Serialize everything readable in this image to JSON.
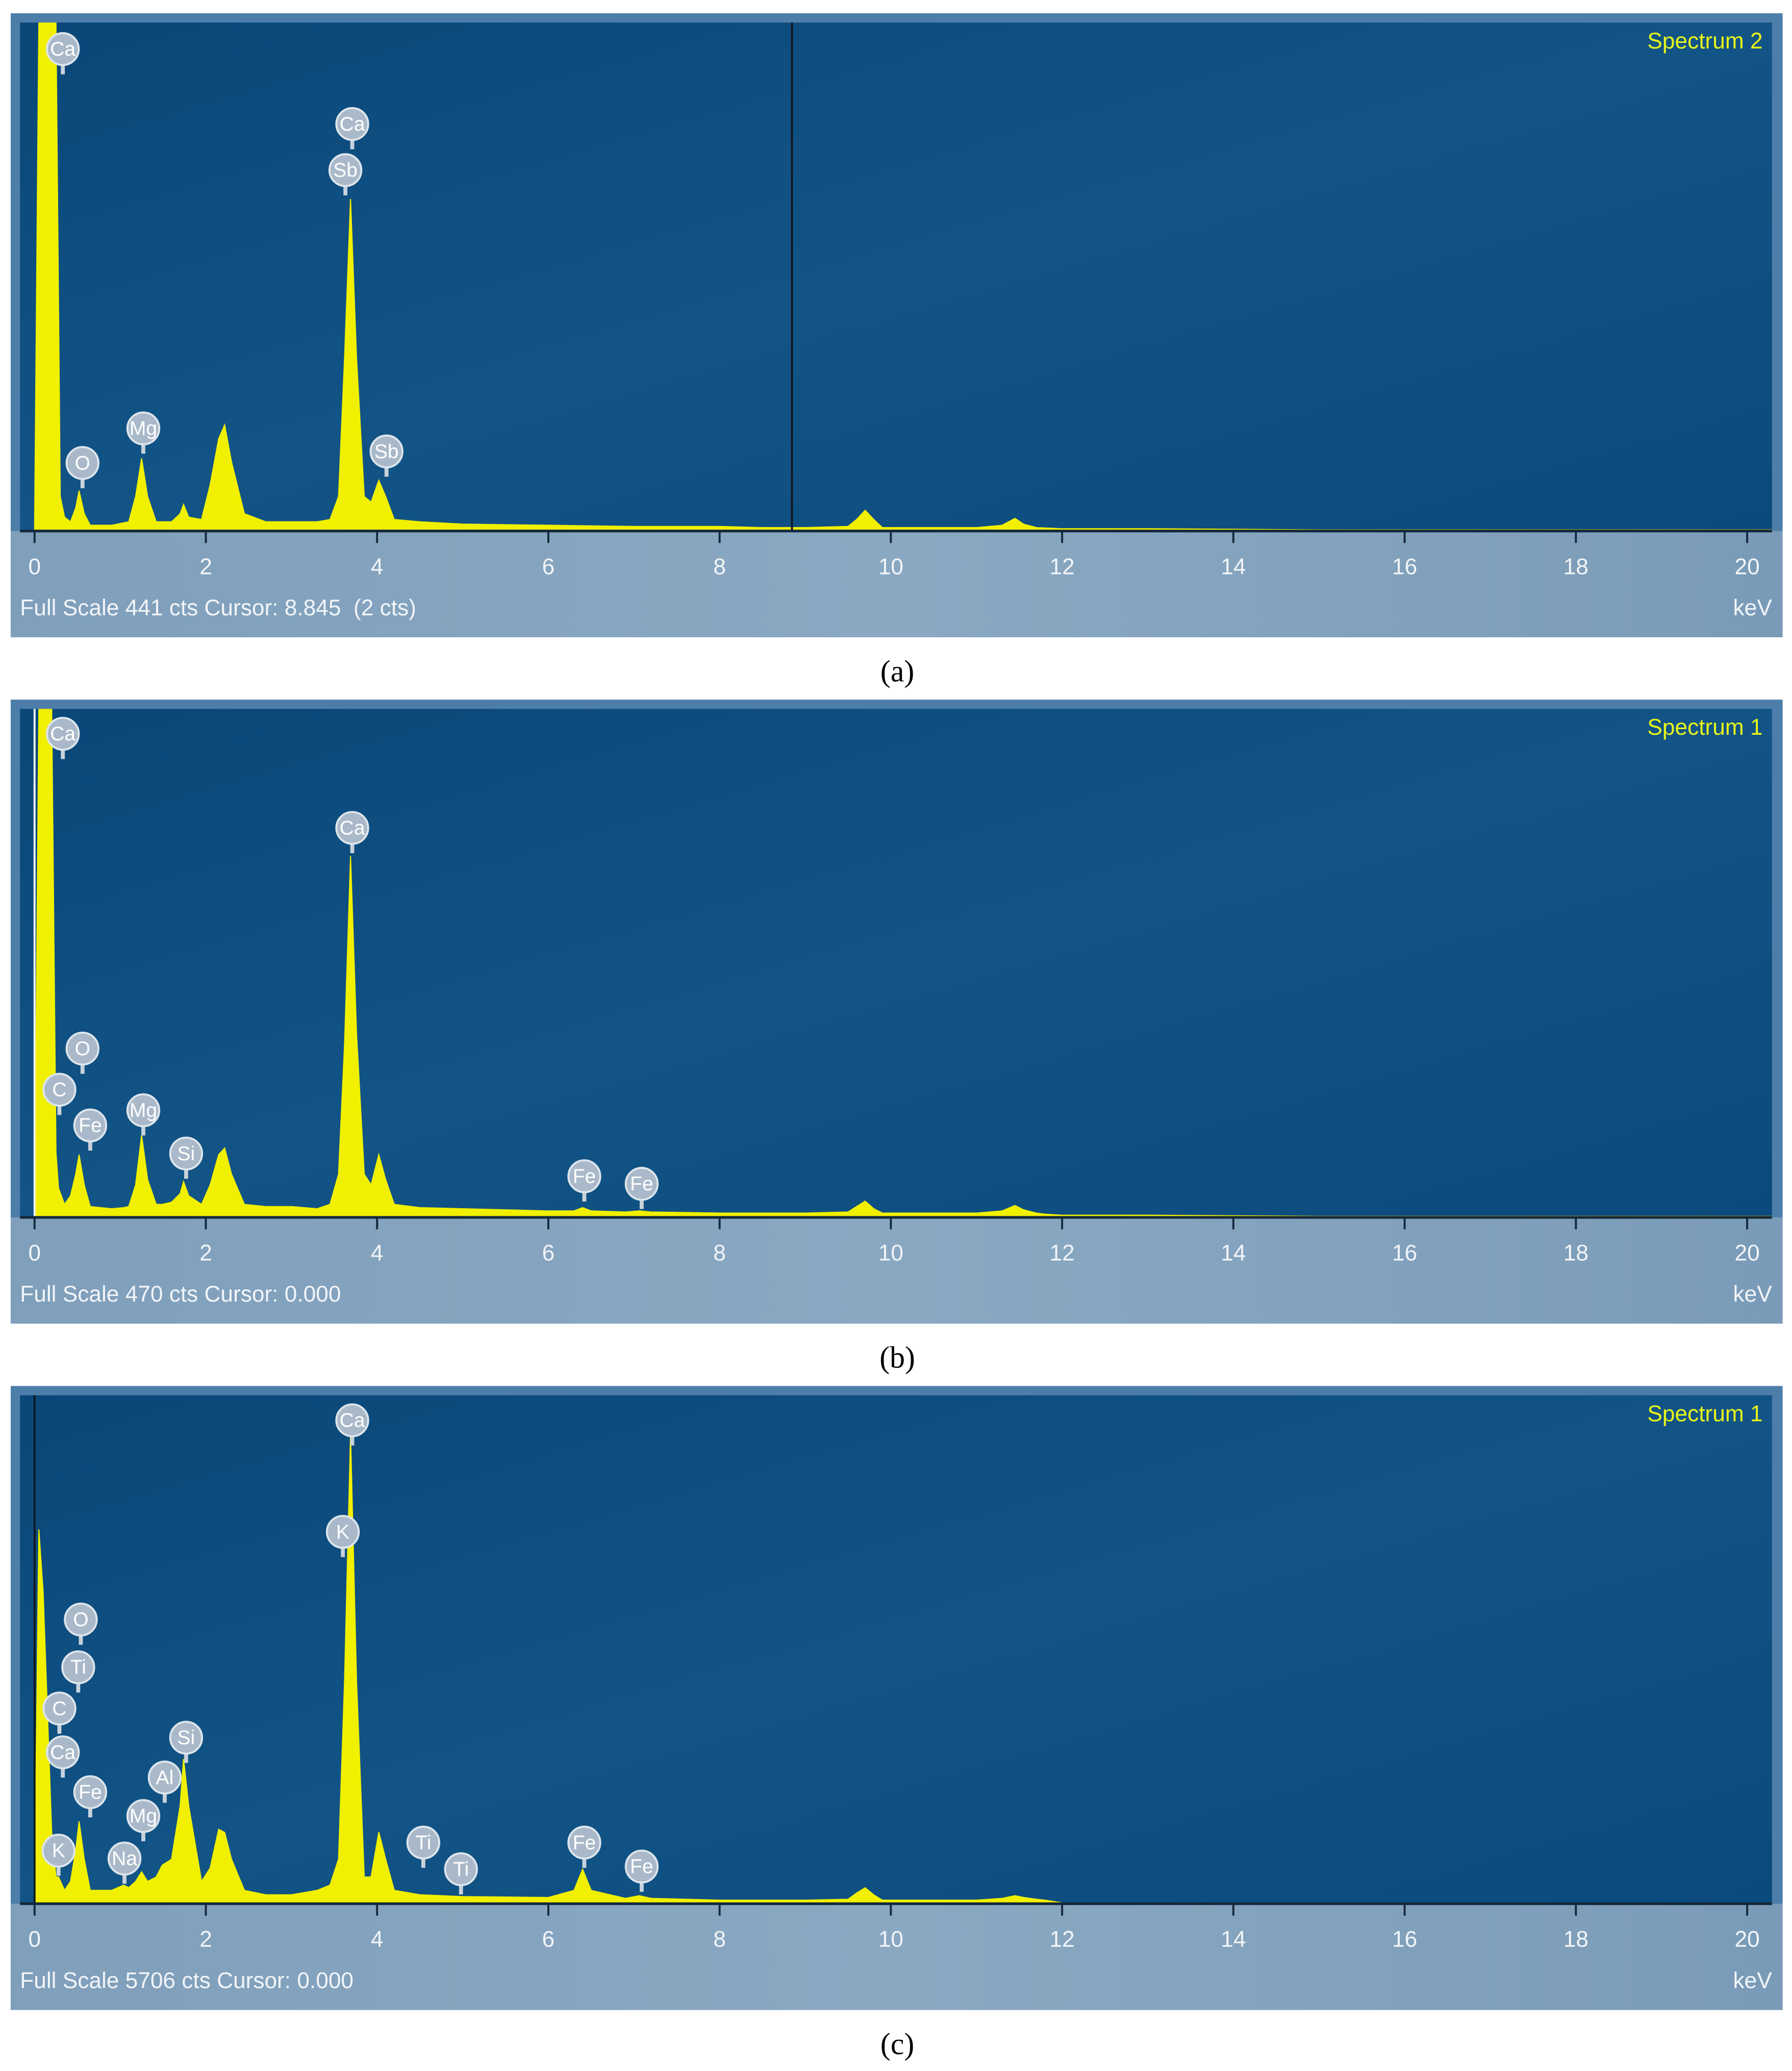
{
  "chart_data": [
    {
      "type": "area",
      "title": "Spectrum 2",
      "footer": "Full Scale 441 cts Cursor: 8.845  (2 cts)",
      "x_label": "keV",
      "caption": "(a)",
      "color": "#f0f000",
      "xlim": [
        -0.17,
        20.29
      ],
      "ylim": [
        0,
        441
      ],
      "xticks": [
        0,
        2,
        4,
        6,
        8,
        10,
        12,
        14,
        16,
        18,
        20
      ],
      "cursor": 8.845,
      "cursor_color": "#101820",
      "x": [
        -0.17,
        0,
        0.05,
        0.1,
        0.2,
        0.25,
        0.3,
        0.35,
        0.42,
        0.48,
        0.52,
        0.58,
        0.65,
        0.9,
        1.1,
        1.18,
        1.25,
        1.32,
        1.42,
        1.6,
        1.7,
        1.74,
        1.8,
        1.95,
        2.05,
        2.15,
        2.22,
        2.3,
        2.45,
        2.7,
        3.0,
        3.3,
        3.45,
        3.55,
        3.62,
        3.69,
        3.76,
        3.85,
        3.93,
        4.02,
        4.1,
        4.2,
        4.5,
        5,
        6,
        7,
        8,
        8.5,
        9,
        9.5,
        9.6,
        9.7,
        9.8,
        9.9,
        10.2,
        11,
        11.3,
        11.45,
        11.55,
        11.7,
        12,
        13,
        15,
        17,
        19,
        20.29
      ],
      "values": [
        0,
        0,
        441,
        441,
        441,
        441,
        30,
        12,
        8,
        20,
        35,
        15,
        5,
        5,
        8,
        30,
        63,
        30,
        8,
        8,
        15,
        23,
        12,
        10,
        40,
        80,
        92,
        60,
        15,
        8,
        8,
        8,
        10,
        30,
        150,
        288,
        150,
        30,
        25,
        44,
        30,
        10,
        8,
        6,
        5,
        4,
        4,
        3,
        3,
        4,
        10,
        18,
        10,
        3,
        3,
        3,
        5,
        11,
        6,
        3,
        2,
        2,
        1,
        1,
        1,
        1
      ],
      "annotations": [
        {
          "text": "Ca",
          "x": 0.33,
          "y": 418
        },
        {
          "text": "Ca",
          "x": 3.71,
          "y": 353
        },
        {
          "text": "Sb",
          "x": 3.63,
          "y": 313
        },
        {
          "text": "O",
          "x": 0.56,
          "y": 59
        },
        {
          "text": "Mg",
          "x": 1.27,
          "y": 89
        },
        {
          "text": "Sb",
          "x": 4.11,
          "y": 69
        }
      ]
    },
    {
      "type": "area",
      "title": "Spectrum 1",
      "footer": "Full Scale 470 cts Cursor: 0.000",
      "x_label": "keV",
      "caption": "(b)",
      "color": "#f0f000",
      "xlim": [
        -0.17,
        20.29
      ],
      "ylim": [
        0,
        470
      ],
      "xticks": [
        0,
        2,
        4,
        6,
        8,
        10,
        12,
        14,
        16,
        18,
        20
      ],
      "cursor": 0,
      "cursor_color": "#f4f8fb",
      "x": [
        -0.17,
        0,
        0.05,
        0.1,
        0.2,
        0.25,
        0.28,
        0.35,
        0.42,
        0.48,
        0.52,
        0.58,
        0.65,
        0.9,
        1.04,
        1.1,
        1.18,
        1.25,
        1.32,
        1.42,
        1.49,
        1.6,
        1.7,
        1.74,
        1.8,
        1.95,
        2.05,
        2.15,
        2.22,
        2.3,
        2.45,
        2.7,
        3.0,
        3.3,
        3.45,
        3.55,
        3.62,
        3.69,
        3.76,
        3.85,
        3.93,
        4.02,
        4.1,
        4.2,
        4.5,
        5,
        6,
        6.3,
        6.4,
        6.5,
        6.9,
        7.06,
        7.2,
        8,
        9,
        9.5,
        9.6,
        9.7,
        9.8,
        9.9,
        10.2,
        11,
        11.3,
        11.45,
        11.55,
        11.7,
        11.8,
        12,
        13,
        15,
        17,
        19,
        20.29
      ],
      "values": [
        0,
        0,
        470,
        470,
        470,
        60,
        27,
        12,
        20,
        40,
        58,
        30,
        10,
        8,
        9,
        10,
        30,
        76,
        35,
        12,
        12,
        14,
        22,
        33,
        20,
        12,
        30,
        58,
        64,
        40,
        12,
        10,
        10,
        8,
        12,
        40,
        160,
        334,
        170,
        40,
        30,
        58,
        35,
        12,
        9,
        8,
        6,
        6,
        9,
        6,
        5,
        6,
        5,
        4,
        4,
        5,
        10,
        15,
        8,
        4,
        4,
        4,
        6,
        11,
        7,
        4,
        3,
        2,
        2,
        1,
        1,
        1,
        1
      ],
      "annotations": [
        {
          "text": "Ca",
          "x": 0.33,
          "y": 447
        },
        {
          "text": "Ca",
          "x": 3.71,
          "y": 360
        },
        {
          "text": "O",
          "x": 0.56,
          "y": 156
        },
        {
          "text": "C",
          "x": 0.29,
          "y": 118
        },
        {
          "text": "Fe",
          "x": 0.65,
          "y": 85
        },
        {
          "text": "Mg",
          "x": 1.27,
          "y": 99
        },
        {
          "text": "Si",
          "x": 1.77,
          "y": 59
        },
        {
          "text": "Fe",
          "x": 6.42,
          "y": 38
        },
        {
          "text": "Fe",
          "x": 7.09,
          "y": 31
        }
      ]
    },
    {
      "type": "area",
      "title": "Spectrum 1",
      "footer": "Full Scale 5706 cts Cursor: 0.000",
      "x_label": "keV",
      "caption": "(c)",
      "color": "#f0f000",
      "xlim": [
        -0.17,
        20.29
      ],
      "ylim": [
        0,
        5706
      ],
      "xticks": [
        0,
        2,
        4,
        6,
        8,
        10,
        12,
        14,
        16,
        18,
        20
      ],
      "cursor": 0,
      "cursor_color": "#101820",
      "x": [
        -0.17,
        0,
        0.05,
        0.1,
        0.2,
        0.25,
        0.28,
        0.35,
        0.42,
        0.48,
        0.52,
        0.58,
        0.65,
        0.9,
        1.04,
        1.1,
        1.18,
        1.25,
        1.32,
        1.42,
        1.49,
        1.6,
        1.7,
        1.74,
        1.8,
        1.95,
        2.05,
        2.15,
        2.22,
        2.3,
        2.45,
        2.7,
        3.0,
        3.3,
        3.45,
        3.55,
        3.62,
        3.69,
        3.76,
        3.85,
        3.93,
        4.02,
        4.1,
        4.2,
        4.5,
        5,
        6,
        6.3,
        6.4,
        6.5,
        6.9,
        7.06,
        7.2,
        8,
        9,
        9.5,
        9.6,
        9.7,
        9.8,
        9.9,
        10.2,
        11,
        11.3,
        11.45,
        11.55,
        11.7,
        11.8,
        12,
        13,
        15,
        17,
        19,
        20.29
      ],
      "values": [
        0,
        0,
        4200,
        3500,
        800,
        300,
        300,
        150,
        250,
        600,
        924,
        500,
        150,
        150,
        209,
        180,
        250,
        358,
        250,
        300,
        432,
        500,
        1100,
        1624,
        1100,
        250,
        400,
        835,
        800,
        500,
        150,
        100,
        100,
        150,
        209,
        500,
        2500,
        5274,
        2500,
        300,
        300,
        805,
        500,
        150,
        100,
        80,
        70,
        150,
        387,
        150,
        60,
        90,
        60,
        40,
        40,
        50,
        120,
        179,
        100,
        40,
        40,
        40,
        60,
        90,
        70,
        50,
        40,
        10,
        5,
        5,
        5,
        5,
        5
      ],
      "annotations": [
        {
          "text": "Ca",
          "x": 3.71,
          "y": 5425
        },
        {
          "text": "K",
          "x": 3.6,
          "y": 4173
        },
        {
          "text": "O",
          "x": 0.54,
          "y": 3189
        },
        {
          "text": "Ti",
          "x": 0.51,
          "y": 2653
        },
        {
          "text": "C",
          "x": 0.29,
          "y": 2191
        },
        {
          "text": "Ca",
          "x": 0.33,
          "y": 1699
        },
        {
          "text": "Si",
          "x": 1.77,
          "y": 1863
        },
        {
          "text": "Al",
          "x": 1.52,
          "y": 1416
        },
        {
          "text": "Fe",
          "x": 0.65,
          "y": 1252
        },
        {
          "text": "Mg",
          "x": 1.27,
          "y": 984
        },
        {
          "text": "Na",
          "x": 1.05,
          "y": 507
        },
        {
          "text": "K",
          "x": 0.28,
          "y": 596
        },
        {
          "text": "Ti",
          "x": 4.54,
          "y": 686
        },
        {
          "text": "Ti",
          "x": 4.98,
          "y": 387
        },
        {
          "text": "Fe",
          "x": 6.42,
          "y": 686
        },
        {
          "text": "Fe",
          "x": 7.09,
          "y": 417
        }
      ]
    }
  ]
}
